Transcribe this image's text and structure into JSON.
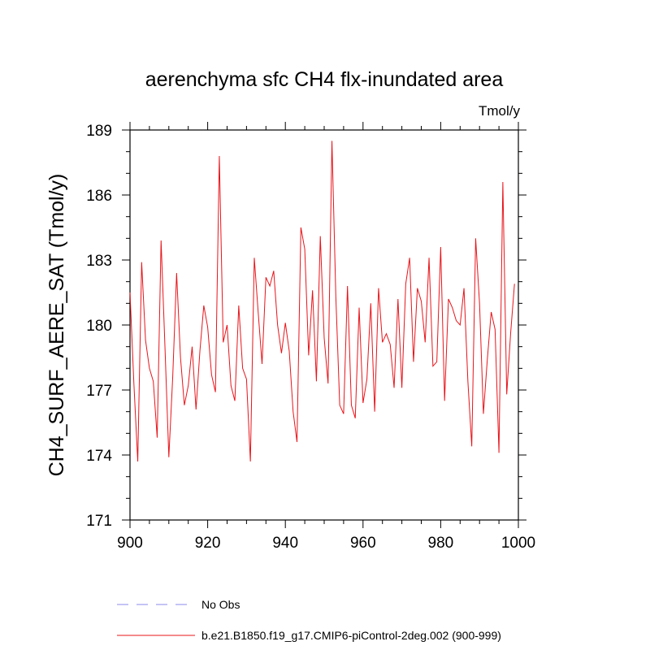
{
  "chart_data": {
    "type": "line",
    "title": "aerenchyma sfc CH4 flx-inundated area",
    "units": "Tmol/y",
    "ylabel": "CH4_SURF_AERE_SAT  (Tmol/y)",
    "xlabel": "",
    "xlim": [
      900,
      1000
    ],
    "ylim": [
      171,
      189
    ],
    "xticks": [
      900,
      920,
      940,
      960,
      980,
      1000
    ],
    "yticks": [
      171,
      174,
      177,
      180,
      183,
      186,
      189
    ],
    "grid": false,
    "legend": [
      {
        "label": "No Obs",
        "color": "#8888ee",
        "dash": "dashed"
      },
      {
        "label": "b.e21.B1850.f19_g17.CMIP6-piControl-2deg.002 (900-999)",
        "color": "#e8141a",
        "dash": "solid"
      }
    ],
    "series": [
      {
        "name": "b.e21.B1850.f19_g17.CMIP6-piControl-2deg.002 (900-999)",
        "color": "#e8141a",
        "x_start": 900,
        "x_step": 1,
        "values": [
          181.5,
          177.3,
          173.7,
          182.9,
          179.3,
          178.0,
          177.4,
          174.8,
          183.9,
          179.0,
          173.9,
          177.6,
          182.4,
          178.5,
          176.3,
          177.2,
          179.0,
          176.1,
          178.8,
          180.9,
          179.9,
          177.7,
          176.9,
          187.8,
          179.2,
          180.0,
          177.2,
          176.5,
          180.9,
          178.0,
          177.5,
          173.7,
          183.1,
          180.6,
          178.2,
          182.2,
          181.8,
          182.5,
          180.0,
          178.7,
          180.1,
          178.8,
          176.0,
          174.6,
          184.5,
          183.5,
          178.6,
          181.6,
          177.4,
          184.1,
          179.4,
          177.3,
          188.5,
          181.3,
          176.3,
          175.9,
          181.8,
          176.3,
          175.7,
          180.8,
          176.4,
          177.5,
          181.0,
          176.0,
          181.7,
          179.2,
          179.6,
          179.1,
          177.1,
          181.2,
          177.1,
          181.9,
          183.1,
          178.3,
          181.7,
          181.1,
          179.2,
          183.1,
          178.1,
          178.3,
          183.6,
          176.5,
          181.2,
          180.8,
          180.2,
          180.0,
          181.7,
          177.4,
          174.4,
          184.0,
          181.0,
          175.9,
          178.4,
          180.6,
          179.8,
          174.1,
          186.6,
          176.8,
          179.6,
          181.9
        ]
      }
    ]
  }
}
